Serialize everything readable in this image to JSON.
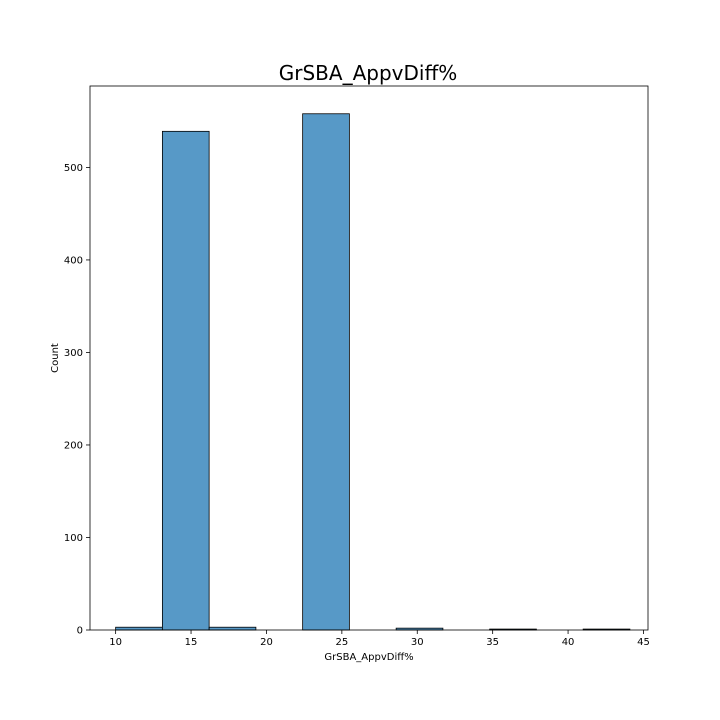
{
  "chart_data": {
    "type": "bar",
    "title": "GrSBA_AppvDiff%",
    "xlabel": "GrSBA_AppvDiff%",
    "ylabel": "Count",
    "xlim": [
      8.3,
      45.3
    ],
    "ylim": [
      0,
      588
    ],
    "xticks": [
      10,
      15,
      20,
      25,
      30,
      35,
      40,
      45
    ],
    "yticks": [
      0,
      100,
      200,
      300,
      400,
      500
    ],
    "grid": false,
    "bar_color": "#5799c7",
    "edge_color": "#000000",
    "bins": [
      {
        "x0": 10.0,
        "x1": 13.1,
        "count": 3
      },
      {
        "x0": 13.1,
        "x1": 16.2,
        "count": 539
      },
      {
        "x0": 16.2,
        "x1": 19.3,
        "count": 3
      },
      {
        "x0": 19.3,
        "x1": 22.4,
        "count": 0
      },
      {
        "x0": 22.4,
        "x1": 25.5,
        "count": 558
      },
      {
        "x0": 25.5,
        "x1": 28.6,
        "count": 0
      },
      {
        "x0": 28.6,
        "x1": 31.7,
        "count": 2
      },
      {
        "x0": 31.7,
        "x1": 34.8,
        "count": 0
      },
      {
        "x0": 34.8,
        "x1": 37.9,
        "count": 1
      },
      {
        "x0": 37.9,
        "x1": 41.0,
        "count": 0
      },
      {
        "x0": 41.0,
        "x1": 44.1,
        "count": 1
      }
    ]
  }
}
